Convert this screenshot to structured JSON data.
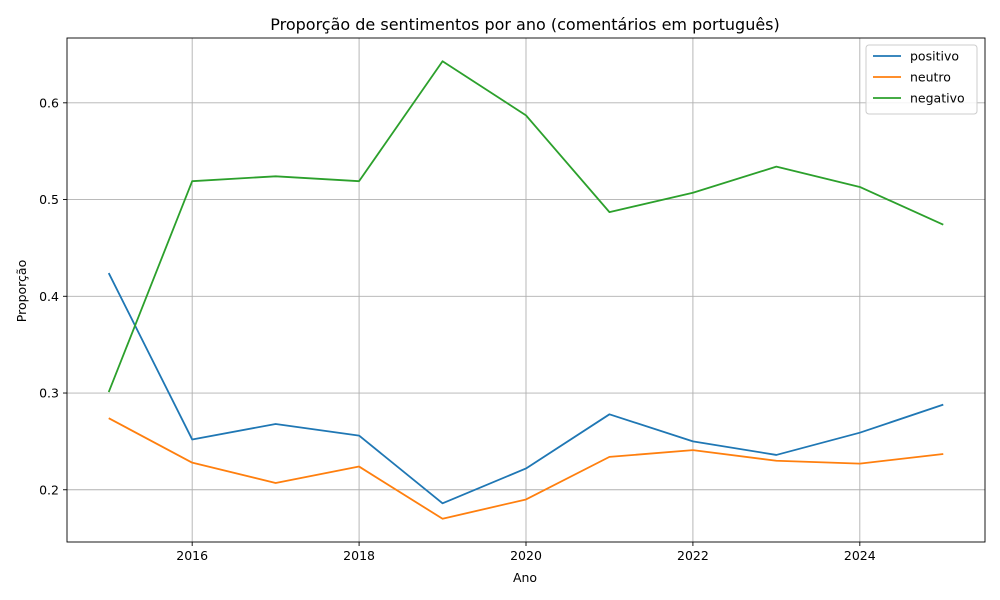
{
  "chart_data": {
    "type": "line",
    "title": "Proporção de sentimentos por ano (comentários em português)",
    "xlabel": "Ano",
    "ylabel": "Proporção",
    "x": [
      2015,
      2016,
      2017,
      2018,
      2019,
      2020,
      2021,
      2022,
      2023,
      2024,
      2025
    ],
    "xlim": [
      2014.5,
      2025.5
    ],
    "ylim": [
      0.146,
      0.667
    ],
    "xticks": [
      2016,
      2018,
      2020,
      2022,
      2024
    ],
    "yticks": [
      0.2,
      0.3,
      0.4,
      0.5,
      0.6
    ],
    "xtick_labels": [
      "2016",
      "2018",
      "2020",
      "2022",
      "2024"
    ],
    "ytick_labels": [
      "0.2",
      "0.3",
      "0.4",
      "0.5",
      "0.6"
    ],
    "grid": true,
    "legend_position": "top-right",
    "series": [
      {
        "name": "positivo",
        "color": "#1f77b4",
        "values": [
          0.424,
          0.252,
          0.268,
          0.256,
          0.186,
          0.222,
          0.278,
          0.25,
          0.236,
          0.259,
          0.288
        ]
      },
      {
        "name": "neutro",
        "color": "#ff7f0e",
        "values": [
          0.274,
          0.228,
          0.207,
          0.224,
          0.17,
          0.19,
          0.234,
          0.241,
          0.23,
          0.227,
          0.237
        ]
      },
      {
        "name": "negativo",
        "color": "#2ca02c",
        "values": [
          0.301,
          0.519,
          0.524,
          0.519,
          0.643,
          0.587,
          0.487,
          0.507,
          0.534,
          0.513,
          0.474
        ]
      }
    ]
  }
}
